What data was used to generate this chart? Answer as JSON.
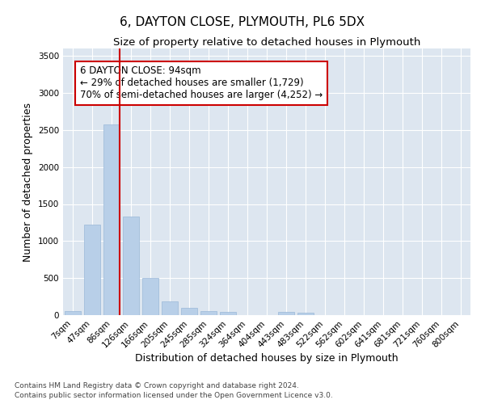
{
  "title": "6, DAYTON CLOSE, PLYMOUTH, PL6 5DX",
  "subtitle": "Size of property relative to detached houses in Plymouth",
  "xlabel": "Distribution of detached houses by size in Plymouth",
  "ylabel": "Number of detached properties",
  "categories": [
    "7sqm",
    "47sqm",
    "86sqm",
    "126sqm",
    "166sqm",
    "205sqm",
    "245sqm",
    "285sqm",
    "324sqm",
    "364sqm",
    "404sqm",
    "443sqm",
    "483sqm",
    "522sqm",
    "562sqm",
    "602sqm",
    "641sqm",
    "681sqm",
    "721sqm",
    "760sqm",
    "800sqm"
  ],
  "values": [
    50,
    1220,
    2580,
    1330,
    500,
    190,
    100,
    50,
    45,
    5,
    5,
    40,
    30,
    0,
    0,
    0,
    0,
    0,
    0,
    0,
    0
  ],
  "bar_color": "#b8cfe8",
  "bar_edgecolor": "#9ab8d8",
  "vline_color": "#cc0000",
  "annotation_title": "6 DAYTON CLOSE: 94sqm",
  "annotation_line1": "← 29% of detached houses are smaller (1,729)",
  "annotation_line2": "70% of semi-detached houses are larger (4,252) →",
  "annotation_box_edgecolor": "#cc0000",
  "background_color": "#dde6f0",
  "ylim": [
    0,
    3600
  ],
  "yticks": [
    0,
    500,
    1000,
    1500,
    2000,
    2500,
    3000,
    3500
  ],
  "footer1": "Contains HM Land Registry data © Crown copyright and database right 2024.",
  "footer2": "Contains public sector information licensed under the Open Government Licence v3.0.",
  "title_fontsize": 11,
  "subtitle_fontsize": 9.5,
  "axis_label_fontsize": 9,
  "tick_fontsize": 7.5,
  "footer_fontsize": 6.5,
  "annotation_fontsize": 8.5
}
